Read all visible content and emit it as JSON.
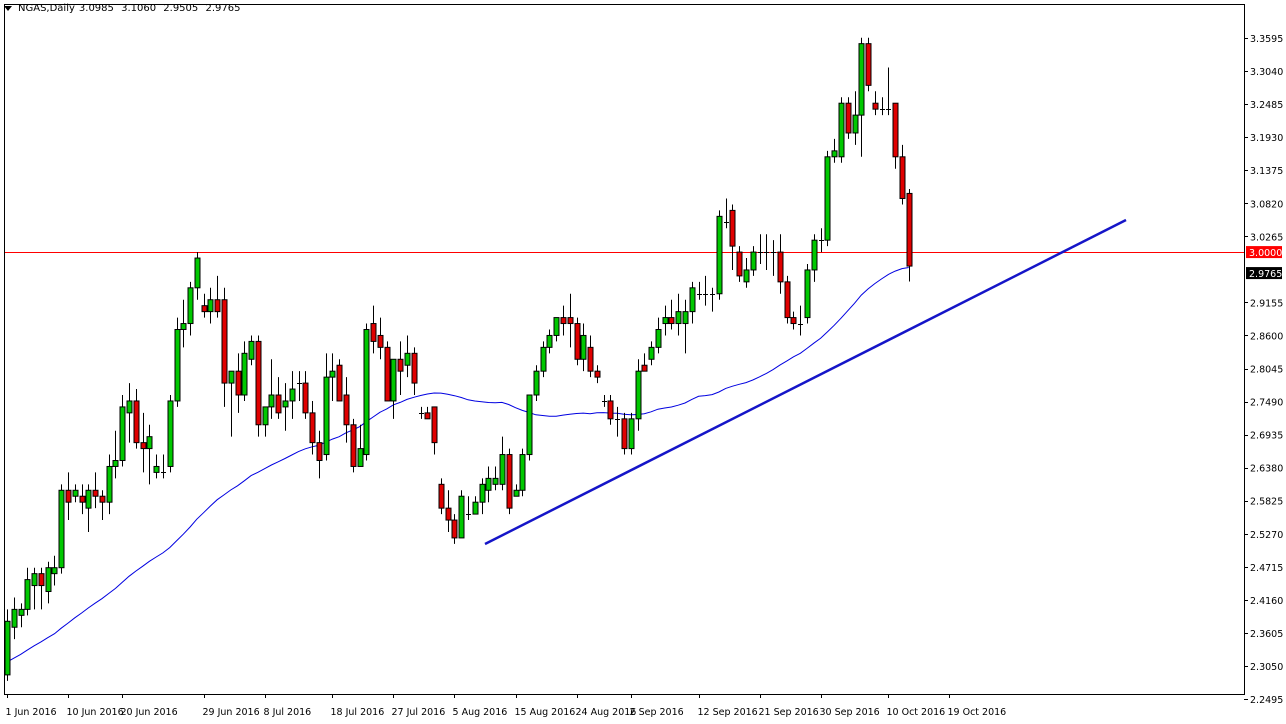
{
  "header": {
    "symbol": "NGAS,Daily",
    "open": "3.0985",
    "high": "3.1060",
    "low": "2.9505",
    "close": "2.9765"
  },
  "colors": {
    "bull": "#00c800",
    "bear": "#e00000",
    "wick": "#000000",
    "ma": "#0000e0",
    "trendline": "#1515c8",
    "hline": "#ff0000",
    "price_tag_bg": "#000000"
  },
  "price_axis": {
    "labels": [
      "3.3595",
      "3.3040",
      "3.2485",
      "3.1930",
      "3.1375",
      "3.0820",
      "3.0265",
      "2.9155",
      "2.8600",
      "2.8045",
      "2.7490",
      "2.6935",
      "2.6380",
      "2.5825",
      "2.5270",
      "2.4715",
      "2.4160",
      "2.3605",
      "2.3050",
      "2.2495"
    ],
    "hline_label": "3.0000",
    "current_label": "2.9765"
  },
  "time_axis": {
    "labels": [
      "1 Jun 2016",
      "10 Jun 2016",
      "20 Jun 2016",
      "29 Jun 2016",
      "8 Jul 2016",
      "18 Jul 2016",
      "27 Jul 2016",
      "5 Aug 2016",
      "15 Aug 2016",
      "24 Aug 2016",
      "2 Sep 2016",
      "12 Sep 2016",
      "21 Sep 2016",
      "30 Sep 2016",
      "10 Oct 2016",
      "19 Oct 2016"
    ]
  },
  "chart_data": {
    "type": "candlestick",
    "symbol": "NGAS",
    "timeframe": "Daily",
    "ylim": [
      2.2495,
      3.3595
    ],
    "horizontal_line": 3.0,
    "candles": [
      {
        "o": 2.29,
        "h": 2.4,
        "l": 2.28,
        "c": 2.38
      },
      {
        "o": 2.37,
        "h": 2.42,
        "l": 2.35,
        "c": 2.4
      },
      {
        "o": 2.39,
        "h": 2.41,
        "l": 2.37,
        "c": 2.4
      },
      {
        "o": 2.4,
        "h": 2.47,
        "l": 2.39,
        "c": 2.45
      },
      {
        "o": 2.44,
        "h": 2.47,
        "l": 2.4,
        "c": 2.46
      },
      {
        "o": 2.46,
        "h": 2.47,
        "l": 2.4,
        "c": 2.44
      },
      {
        "o": 2.43,
        "h": 2.48,
        "l": 2.41,
        "c": 2.47
      },
      {
        "o": 2.46,
        "h": 2.49,
        "l": 2.44,
        "c": 2.47
      },
      {
        "o": 2.47,
        "h": 2.61,
        "l": 2.46,
        "c": 2.6
      },
      {
        "o": 2.6,
        "h": 2.63,
        "l": 2.55,
        "c": 2.58
      },
      {
        "o": 2.59,
        "h": 2.61,
        "l": 2.58,
        "c": 2.6
      },
      {
        "o": 2.59,
        "h": 2.61,
        "l": 2.56,
        "c": 2.58
      },
      {
        "o": 2.57,
        "h": 2.61,
        "l": 2.53,
        "c": 2.6
      },
      {
        "o": 2.6,
        "h": 2.63,
        "l": 2.57,
        "c": 2.59
      },
      {
        "o": 2.59,
        "h": 2.6,
        "l": 2.55,
        "c": 2.58
      },
      {
        "o": 2.58,
        "h": 2.66,
        "l": 2.56,
        "c": 2.64
      },
      {
        "o": 2.64,
        "h": 2.7,
        "l": 2.62,
        "c": 2.65
      },
      {
        "o": 2.65,
        "h": 2.76,
        "l": 2.64,
        "c": 2.74
      },
      {
        "o": 2.73,
        "h": 2.78,
        "l": 2.68,
        "c": 2.75
      },
      {
        "o": 2.75,
        "h": 2.77,
        "l": 2.67,
        "c": 2.68
      },
      {
        "o": 2.68,
        "h": 2.73,
        "l": 2.63,
        "c": 2.67
      },
      {
        "o": 2.67,
        "h": 2.71,
        "l": 2.61,
        "c": 2.69
      },
      {
        "o": 2.63,
        "h": 2.66,
        "l": 2.62,
        "c": 2.64
      },
      {
        "o": 2.63,
        "h": 2.66,
        "l": 2.62,
        "c": 2.63
      },
      {
        "o": 2.64,
        "h": 2.76,
        "l": 2.63,
        "c": 2.75
      },
      {
        "o": 2.75,
        "h": 2.89,
        "l": 2.74,
        "c": 2.87
      },
      {
        "o": 2.87,
        "h": 2.92,
        "l": 2.84,
        "c": 2.88
      },
      {
        "o": 2.88,
        "h": 2.95,
        "l": 2.86,
        "c": 2.94
      },
      {
        "o": 2.94,
        "h": 3.0,
        "l": 2.92,
        "c": 2.99
      },
      {
        "o": 2.91,
        "h": 2.93,
        "l": 2.89,
        "c": 2.9
      },
      {
        "o": 2.9,
        "h": 2.94,
        "l": 2.88,
        "c": 2.92
      },
      {
        "o": 2.92,
        "h": 2.96,
        "l": 2.89,
        "c": 2.9
      },
      {
        "o": 2.92,
        "h": 2.94,
        "l": 2.74,
        "c": 2.78
      },
      {
        "o": 2.78,
        "h": 2.8,
        "l": 2.69,
        "c": 2.8
      },
      {
        "o": 2.8,
        "h": 2.83,
        "l": 2.73,
        "c": 2.76
      },
      {
        "o": 2.76,
        "h": 2.85,
        "l": 2.75,
        "c": 2.83
      },
      {
        "o": 2.82,
        "h": 2.86,
        "l": 2.81,
        "c": 2.85
      },
      {
        "o": 2.85,
        "h": 2.86,
        "l": 2.69,
        "c": 2.71
      },
      {
        "o": 2.71,
        "h": 2.74,
        "l": 2.69,
        "c": 2.74
      },
      {
        "o": 2.74,
        "h": 2.82,
        "l": 2.72,
        "c": 2.76
      },
      {
        "o": 2.76,
        "h": 2.79,
        "l": 2.72,
        "c": 2.73
      },
      {
        "o": 2.74,
        "h": 2.78,
        "l": 2.7,
        "c": 2.75
      },
      {
        "o": 2.75,
        "h": 2.8,
        "l": 2.72,
        "c": 2.77
      },
      {
        "o": 2.78,
        "h": 2.8,
        "l": 2.75,
        "c": 2.78
      },
      {
        "o": 2.78,
        "h": 2.8,
        "l": 2.72,
        "c": 2.73
      },
      {
        "o": 2.73,
        "h": 2.75,
        "l": 2.66,
        "c": 2.68
      },
      {
        "o": 2.68,
        "h": 2.7,
        "l": 2.62,
        "c": 2.65
      },
      {
        "o": 2.66,
        "h": 2.83,
        "l": 2.65,
        "c": 2.79
      },
      {
        "o": 2.79,
        "h": 2.83,
        "l": 2.75,
        "c": 2.8
      },
      {
        "o": 2.81,
        "h": 2.82,
        "l": 2.75,
        "c": 2.75
      },
      {
        "o": 2.76,
        "h": 2.79,
        "l": 2.68,
        "c": 2.71
      },
      {
        "o": 2.71,
        "h": 2.72,
        "l": 2.63,
        "c": 2.64
      },
      {
        "o": 2.64,
        "h": 2.71,
        "l": 2.64,
        "c": 2.67
      },
      {
        "o": 2.66,
        "h": 2.88,
        "l": 2.65,
        "c": 2.87
      },
      {
        "o": 2.88,
        "h": 2.91,
        "l": 2.83,
        "c": 2.85
      },
      {
        "o": 2.86,
        "h": 2.89,
        "l": 2.82,
        "c": 2.84
      },
      {
        "o": 2.84,
        "h": 2.85,
        "l": 2.75,
        "c": 2.75
      },
      {
        "o": 2.75,
        "h": 2.82,
        "l": 2.72,
        "c": 2.82
      },
      {
        "o": 2.82,
        "h": 2.85,
        "l": 2.76,
        "c": 2.8
      },
      {
        "o": 2.81,
        "h": 2.86,
        "l": 2.79,
        "c": 2.83
      },
      {
        "o": 2.83,
        "h": 2.84,
        "l": 2.76,
        "c": 2.78
      },
      {
        "o": 2.73,
        "h": 2.74,
        "l": 2.72,
        "c": 2.73
      },
      {
        "o": 2.73,
        "h": 2.74,
        "l": 2.72,
        "c": 2.72
      },
      {
        "o": 2.74,
        "h": 2.74,
        "l": 2.66,
        "c": 2.68
      },
      {
        "o": 2.61,
        "h": 2.62,
        "l": 2.56,
        "c": 2.57
      },
      {
        "o": 2.57,
        "h": 2.6,
        "l": 2.53,
        "c": 2.55
      },
      {
        "o": 2.55,
        "h": 2.56,
        "l": 2.51,
        "c": 2.52
      },
      {
        "o": 2.52,
        "h": 2.6,
        "l": 2.52,
        "c": 2.59
      },
      {
        "o": 2.56,
        "h": 2.59,
        "l": 2.55,
        "c": 2.56
      },
      {
        "o": 2.56,
        "h": 2.59,
        "l": 2.56,
        "c": 2.58
      },
      {
        "o": 2.58,
        "h": 2.62,
        "l": 2.56,
        "c": 2.61
      },
      {
        "o": 2.6,
        "h": 2.64,
        "l": 2.58,
        "c": 2.62
      },
      {
        "o": 2.61,
        "h": 2.64,
        "l": 2.6,
        "c": 2.62
      },
      {
        "o": 2.61,
        "h": 2.69,
        "l": 2.6,
        "c": 2.66
      },
      {
        "o": 2.66,
        "h": 2.67,
        "l": 2.56,
        "c": 2.57
      },
      {
        "o": 2.59,
        "h": 2.61,
        "l": 2.59,
        "c": 2.6
      },
      {
        "o": 2.6,
        "h": 2.67,
        "l": 2.59,
        "c": 2.66
      },
      {
        "o": 2.66,
        "h": 2.76,
        "l": 2.65,
        "c": 2.76
      },
      {
        "o": 2.76,
        "h": 2.81,
        "l": 2.75,
        "c": 2.8
      },
      {
        "o": 2.8,
        "h": 2.85,
        "l": 2.79,
        "c": 2.84
      },
      {
        "o": 2.84,
        "h": 2.87,
        "l": 2.83,
        "c": 2.86
      },
      {
        "o": 2.86,
        "h": 2.89,
        "l": 2.85,
        "c": 2.89
      },
      {
        "o": 2.89,
        "h": 2.91,
        "l": 2.86,
        "c": 2.88
      },
      {
        "o": 2.89,
        "h": 2.93,
        "l": 2.84,
        "c": 2.88
      },
      {
        "o": 2.88,
        "h": 2.89,
        "l": 2.81,
        "c": 2.82
      },
      {
        "o": 2.82,
        "h": 2.88,
        "l": 2.8,
        "c": 2.86
      },
      {
        "o": 2.84,
        "h": 2.86,
        "l": 2.79,
        "c": 2.8
      },
      {
        "o": 2.8,
        "h": 2.81,
        "l": 2.78,
        "c": 2.79
      },
      {
        "o": 2.75,
        "h": 2.76,
        "l": 2.74,
        "c": 2.75
      },
      {
        "o": 2.75,
        "h": 2.76,
        "l": 2.71,
        "c": 2.72
      },
      {
        "o": 2.72,
        "h": 2.74,
        "l": 2.69,
        "c": 2.72
      },
      {
        "o": 2.72,
        "h": 2.73,
        "l": 2.66,
        "c": 2.67
      },
      {
        "o": 2.67,
        "h": 2.73,
        "l": 2.66,
        "c": 2.72
      },
      {
        "o": 2.72,
        "h": 2.82,
        "l": 2.7,
        "c": 2.8
      },
      {
        "o": 2.81,
        "h": 2.83,
        "l": 2.8,
        "c": 2.8
      },
      {
        "o": 2.82,
        "h": 2.85,
        "l": 2.81,
        "c": 2.84
      },
      {
        "o": 2.84,
        "h": 2.89,
        "l": 2.83,
        "c": 2.87
      },
      {
        "o": 2.88,
        "h": 2.91,
        "l": 2.86,
        "c": 2.89
      },
      {
        "o": 2.89,
        "h": 2.92,
        "l": 2.87,
        "c": 2.88
      },
      {
        "o": 2.88,
        "h": 2.93,
        "l": 2.86,
        "c": 2.9
      },
      {
        "o": 2.88,
        "h": 2.92,
        "l": 2.83,
        "c": 2.9
      },
      {
        "o": 2.9,
        "h": 2.95,
        "l": 2.88,
        "c": 2.94
      },
      {
        "o": 2.93,
        "h": 2.95,
        "l": 2.92,
        "c": 2.93
      },
      {
        "o": 2.93,
        "h": 2.96,
        "l": 2.91,
        "c": 2.93
      },
      {
        "o": 2.93,
        "h": 2.94,
        "l": 2.9,
        "c": 2.93
      },
      {
        "o": 2.93,
        "h": 3.07,
        "l": 2.92,
        "c": 3.06
      },
      {
        "o": 3.05,
        "h": 3.09,
        "l": 3.04,
        "c": 3.05
      },
      {
        "o": 3.07,
        "h": 3.08,
        "l": 2.97,
        "c": 3.01
      },
      {
        "o": 3.0,
        "h": 3.01,
        "l": 2.95,
        "c": 2.96
      },
      {
        "o": 2.95,
        "h": 2.99,
        "l": 2.94,
        "c": 2.97
      },
      {
        "o": 2.97,
        "h": 3.01,
        "l": 2.96,
        "c": 3.0
      },
      {
        "o": 3.0,
        "h": 3.03,
        "l": 2.98,
        "c": 3.0
      },
      {
        "o": 3.0,
        "h": 3.03,
        "l": 2.97,
        "c": 3.0
      },
      {
        "o": 3.0,
        "h": 3.02,
        "l": 2.96,
        "c": 3.0
      },
      {
        "o": 3.0,
        "h": 3.03,
        "l": 2.93,
        "c": 2.95
      },
      {
        "o": 2.95,
        "h": 2.96,
        "l": 2.88,
        "c": 2.89
      },
      {
        "o": 2.89,
        "h": 2.9,
        "l": 2.87,
        "c": 2.88
      },
      {
        "o": 2.88,
        "h": 2.91,
        "l": 2.86,
        "c": 2.88
      },
      {
        "o": 2.89,
        "h": 2.98,
        "l": 2.88,
        "c": 2.97
      },
      {
        "o": 2.97,
        "h": 3.03,
        "l": 2.95,
        "c": 3.02
      },
      {
        "o": 3.02,
        "h": 3.04,
        "l": 3.0,
        "c": 3.02
      },
      {
        "o": 3.02,
        "h": 3.17,
        "l": 3.01,
        "c": 3.16
      },
      {
        "o": 3.16,
        "h": 3.19,
        "l": 3.15,
        "c": 3.17
      },
      {
        "o": 3.16,
        "h": 3.26,
        "l": 3.15,
        "c": 3.25
      },
      {
        "o": 3.25,
        "h": 3.26,
        "l": 3.19,
        "c": 3.2
      },
      {
        "o": 3.2,
        "h": 3.27,
        "l": 3.18,
        "c": 3.23
      },
      {
        "o": 3.23,
        "h": 3.36,
        "l": 3.16,
        "c": 3.35
      },
      {
        "o": 3.35,
        "h": 3.36,
        "l": 3.27,
        "c": 3.28
      },
      {
        "o": 3.25,
        "h": 3.27,
        "l": 3.23,
        "c": 3.24
      },
      {
        "o": 3.24,
        "h": 3.26,
        "l": 3.23,
        "c": 3.24
      },
      {
        "o": 3.24,
        "h": 3.31,
        "l": 3.23,
        "c": 3.24
      },
      {
        "o": 3.25,
        "h": 3.25,
        "l": 3.14,
        "c": 3.16
      },
      {
        "o": 3.16,
        "h": 3.18,
        "l": 3.08,
        "c": 3.09
      },
      {
        "o": 3.0985,
        "h": 3.106,
        "l": 2.9505,
        "c": 2.9765
      }
    ]
  }
}
